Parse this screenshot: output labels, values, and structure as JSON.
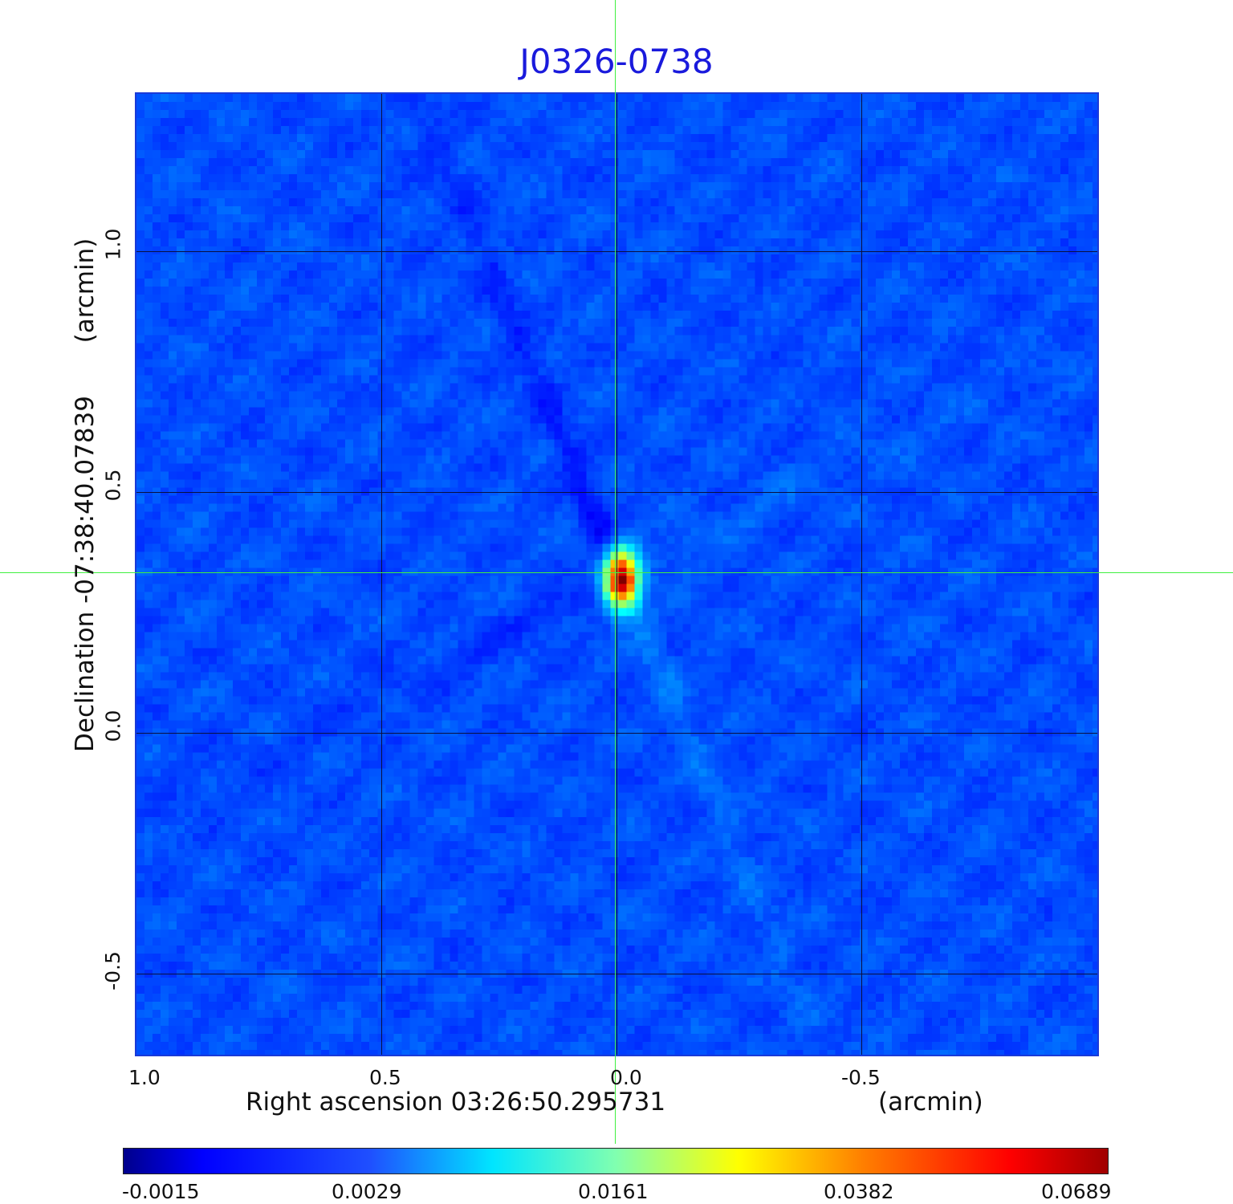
{
  "title": "J0326-0738",
  "image": {
    "colormap": "jet",
    "background_color": "#1b4fee",
    "source_peak_color": "#b00000",
    "crosshair_color": "#40f040",
    "gridline_color": "#0a0f40"
  },
  "x_axis": {
    "label": "Right ascension  03:26:50.295731",
    "unit": "(arcmin)",
    "ticks": [
      "1.0",
      "0.5",
      "0.0",
      "-0.5"
    ]
  },
  "y_axis": {
    "label": "Declination  -07:38:40.07839",
    "unit": "(arcmin)",
    "ticks": [
      "1.0",
      "0.5",
      "0.0",
      "-0.5"
    ]
  },
  "colorbar": {
    "ticks": [
      "-0.0015",
      "0.0029",
      "0.0161",
      "0.0382",
      "0.0689"
    ]
  }
}
